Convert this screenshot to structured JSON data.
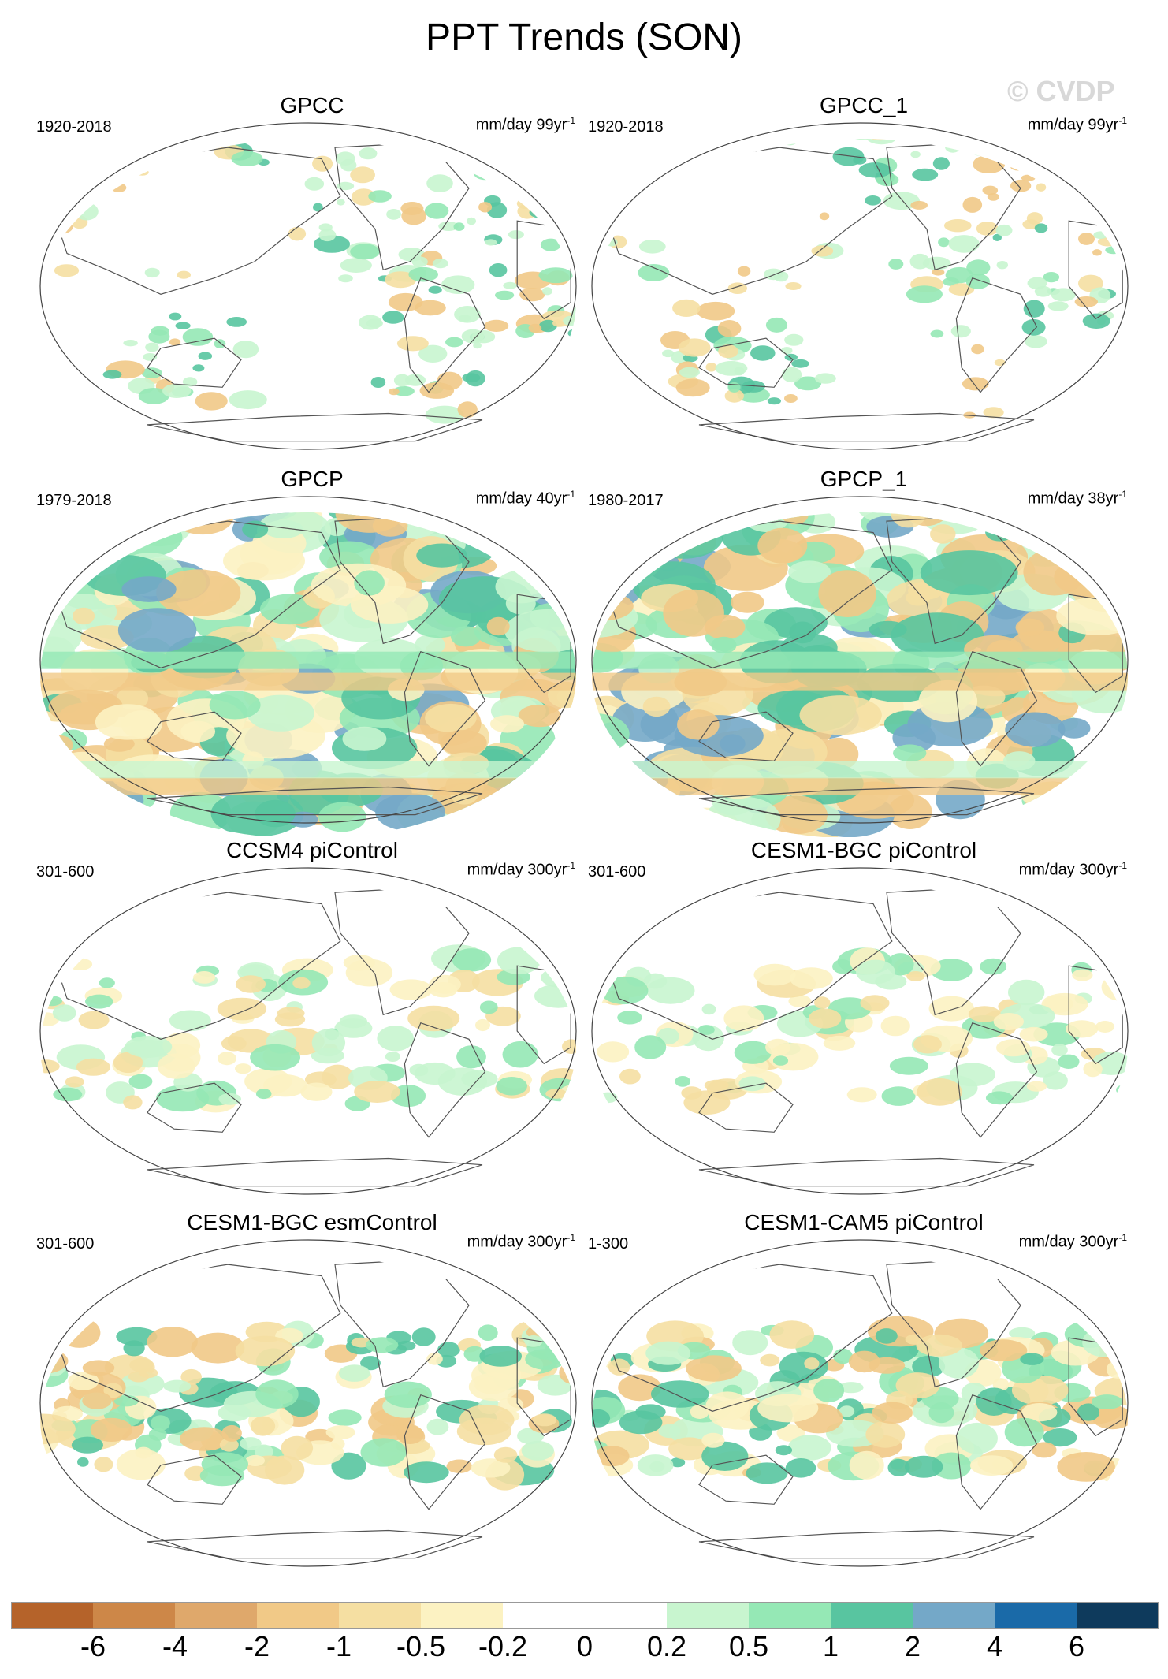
{
  "title": "PPT Trends (SON)",
  "watermark": "© CVDP",
  "panels": [
    {
      "title": "GPCC",
      "period": "1920-2018",
      "units_main": "mm/day 99yr",
      "units_exp": "-1",
      "style": "land"
    },
    {
      "title": "GPCC_1",
      "period": "1920-2018",
      "units_main": "mm/day 99yr",
      "units_exp": "-1",
      "style": "land"
    },
    {
      "title": "GPCP",
      "period": "1979-2018",
      "units_main": "mm/day 40yr",
      "units_exp": "-1",
      "style": "strong"
    },
    {
      "title": "GPCP_1",
      "period": "1980-2017",
      "units_main": "mm/day 38yr",
      "units_exp": "-1",
      "style": "strong"
    },
    {
      "title": "CCSM4 piControl",
      "period": "301-600",
      "units_main": "mm/day 300yr",
      "units_exp": "-1",
      "style": "weak"
    },
    {
      "title": "CESM1-BGC piControl",
      "period": "301-600",
      "units_main": "mm/day 300yr",
      "units_exp": "-1",
      "style": "weak"
    },
    {
      "title": "CESM1-BGC esmControl",
      "period": "301-600",
      "units_main": "mm/day 300yr",
      "units_exp": "-1",
      "style": "medium"
    },
    {
      "title": "CESM1-CAM5 piControl",
      "period": "1-300",
      "units_main": "mm/day 300yr",
      "units_exp": "-1",
      "style": "medium"
    }
  ],
  "colorbar": {
    "colors": [
      "#b5632a",
      "#cd8748",
      "#dfa86b",
      "#f1c987",
      "#f5dfa2",
      "#fcf2c2",
      "#ffffff",
      "#ffffff",
      "#c8f5cf",
      "#95e8b5",
      "#58c5a0",
      "#74a8c8",
      "#1a6aa8",
      "#0e3a5c"
    ],
    "labels": [
      "-6",
      "-4",
      "-2",
      "-1",
      "-0.5",
      "-0.2",
      "0",
      "0.2",
      "0.5",
      "1",
      "2",
      "4",
      "6"
    ]
  }
}
